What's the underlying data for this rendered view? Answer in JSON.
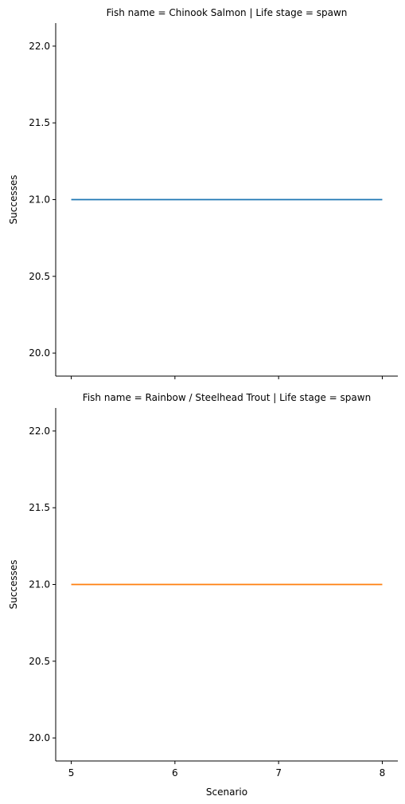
{
  "chart_data": [
    {
      "type": "line",
      "title": "Fish name = Chinook Salmon | Life stage = spawn",
      "xlabel": "",
      "ylabel": "Successes",
      "xlim": [
        4.85,
        8.15
      ],
      "ylim": [
        19.85,
        22.15
      ],
      "xticks": [
        5,
        6,
        7,
        8
      ],
      "xtick_labels_visible": false,
      "yticks": [
        20.0,
        20.5,
        21.0,
        21.5,
        22.0
      ],
      "ytick_labels": [
        "20.0",
        "20.5",
        "21.0",
        "21.5",
        "22.0"
      ],
      "grid": false,
      "series": [
        {
          "color": "#1f77b4",
          "x": [
            5,
            6,
            7,
            8
          ],
          "y": [
            21,
            21,
            21,
            21
          ]
        }
      ]
    },
    {
      "type": "line",
      "title": "Fish name = Rainbow / Steelhead Trout | Life stage = spawn",
      "xlabel": "Scenario",
      "ylabel": "Successes",
      "xlim": [
        4.85,
        8.15
      ],
      "ylim": [
        19.85,
        22.15
      ],
      "xticks": [
        5,
        6,
        7,
        8
      ],
      "xtick_labels": [
        "5",
        "6",
        "7",
        "8"
      ],
      "xtick_labels_visible": true,
      "yticks": [
        20.0,
        20.5,
        21.0,
        21.5,
        22.0
      ],
      "ytick_labels": [
        "20.0",
        "20.5",
        "21.0",
        "21.5",
        "22.0"
      ],
      "grid": false,
      "series": [
        {
          "color": "#ff7f0e",
          "x": [
            5,
            6,
            7,
            8
          ],
          "y": [
            21,
            21,
            21,
            21
          ]
        }
      ]
    }
  ]
}
